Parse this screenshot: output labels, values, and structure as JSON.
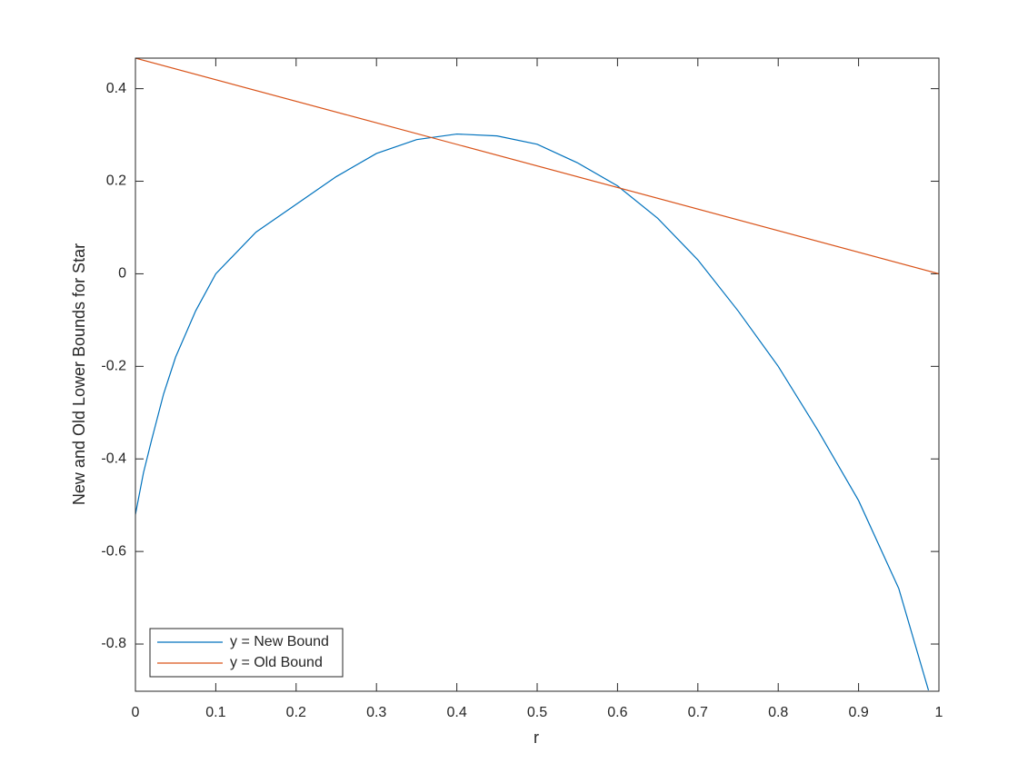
{
  "chart_data": {
    "type": "line",
    "x_label": "r",
    "y_label": "New and Old Lower Bounds for Star",
    "xlim": [
      0,
      1
    ],
    "xticks": [
      0,
      0.1,
      0.2,
      0.3,
      0.4,
      0.5,
      0.6,
      0.7,
      0.8,
      0.9,
      1
    ],
    "ylim": [
      -0.902,
      0.466
    ],
    "yticks": [
      -0.8,
      -0.6,
      -0.4,
      -0.2,
      0,
      0.2,
      0.4
    ],
    "legend": "lower-left",
    "series": [
      {
        "name": "y = New Bound",
        "color": "#0072bd",
        "x": [
          0,
          0.01,
          0.02,
          0.035,
          0.05,
          0.075,
          0.1,
          0.15,
          0.2,
          0.25,
          0.3,
          0.35,
          0.4,
          0.45,
          0.5,
          0.55,
          0.6,
          0.65,
          0.7,
          0.75,
          0.8,
          0.85,
          0.9,
          0.95,
          0.987
        ],
        "values": [
          -0.52,
          -0.43,
          -0.36,
          -0.26,
          -0.18,
          -0.08,
          0.0,
          0.09,
          0.15,
          0.21,
          0.26,
          0.29,
          0.302,
          0.298,
          0.28,
          0.24,
          0.19,
          0.12,
          0.03,
          -0.08,
          -0.2,
          -0.34,
          -0.49,
          -0.68,
          -0.9
        ]
      },
      {
        "name": "y = Old Bound",
        "color": "#d95319",
        "x": [
          0,
          1
        ],
        "values": [
          0.466,
          0
        ]
      }
    ]
  }
}
